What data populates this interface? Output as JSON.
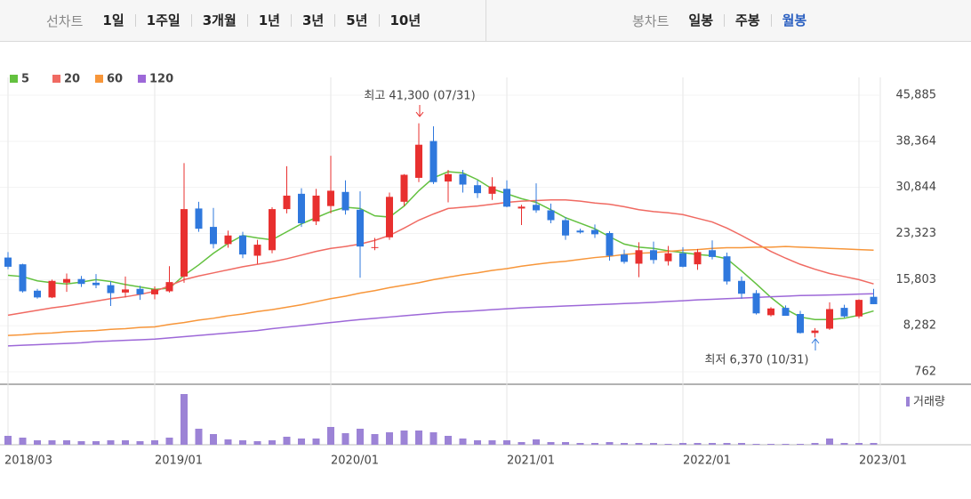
{
  "tabs": {
    "line_label": "선차트",
    "line_items": [
      "1일",
      "1주일",
      "3개월",
      "1년",
      "3년",
      "5년",
      "10년"
    ],
    "candle_label": "봉차트",
    "candle_items": [
      "일봉",
      "주봉",
      "월봉"
    ],
    "selected": "월봉"
  },
  "chart_data": {
    "type": "candlestick",
    "categories": [
      "2018/03",
      null,
      null,
      null,
      null,
      null,
      null,
      null,
      null,
      null,
      "2019/01",
      null,
      null,
      null,
      null,
      null,
      null,
      null,
      null,
      null,
      null,
      null,
      "2020/01",
      null,
      null,
      null,
      null,
      null,
      null,
      null,
      null,
      null,
      null,
      null,
      "2021/01",
      null,
      null,
      null,
      null,
      null,
      null,
      null,
      null,
      null,
      null,
      null,
      "2022/01",
      null,
      null,
      null,
      null,
      null,
      null,
      null,
      null,
      null,
      null,
      null,
      "2023/01",
      null
    ],
    "open": [
      19400,
      18300,
      14000,
      12900,
      15300,
      15900,
      15300,
      14900,
      13700,
      14300,
      13400,
      13900,
      16300,
      27400,
      24400,
      21600,
      23000,
      19700,
      20600,
      27300,
      29800,
      25300,
      27800,
      30100,
      27200,
      21100,
      22700,
      28500,
      32400,
      38400,
      31800,
      33000,
      31200,
      29800,
      30600,
      27400,
      28000,
      27100,
      25500,
      23800,
      23900,
      23400,
      19900,
      18400,
      20600,
      18800,
      20100,
      18300,
      20600,
      19600,
      15600,
      13600,
      10000,
      11200,
      10200,
      7100,
      7800,
      11200,
      9800,
      13000
    ],
    "high": [
      20300,
      18400,
      14300,
      15800,
      16800,
      16400,
      16700,
      15500,
      16300,
      14800,
      14700,
      18000,
      34800,
      28500,
      27500,
      23800,
      23600,
      22300,
      27600,
      34300,
      30700,
      30600,
      36000,
      32000,
      30200,
      22600,
      30000,
      33000,
      41300,
      40800,
      33700,
      33700,
      32000,
      32500,
      32000,
      28000,
      31500,
      28200,
      26000,
      24100,
      24800,
      23700,
      20700,
      21900,
      22000,
      21300,
      21100,
      20800,
      22200,
      20200,
      16300,
      14100,
      11300,
      11600,
      10700,
      7900,
      12100,
      11700,
      12600,
      14300
    ],
    "low": [
      17500,
      13700,
      12700,
      12800,
      13800,
      14600,
      14400,
      11500,
      12900,
      12500,
      12600,
      13700,
      15300,
      23600,
      20900,
      21000,
      19300,
      18400,
      20100,
      26600,
      24400,
      24700,
      26600,
      26400,
      16100,
      20600,
      22300,
      27800,
      31700,
      31400,
      28400,
      30000,
      29100,
      28800,
      27600,
      24700,
      26700,
      25000,
      22300,
      23300,
      22600,
      18900,
      18400,
      16200,
      18400,
      18100,
      17800,
      17400,
      19100,
      15000,
      12700,
      10100,
      9800,
      9900,
      7000,
      6370,
      7600,
      9600,
      9500,
      11800
    ],
    "close": [
      17900,
      13900,
      12900,
      15600,
      15900,
      15100,
      14900,
      13600,
      14200,
      13400,
      14200,
      15400,
      27300,
      24100,
      21600,
      23000,
      19900,
      21500,
      27300,
      29500,
      25000,
      29500,
      30300,
      27100,
      21200,
      21100,
      29300,
      32900,
      37800,
      31700,
      33000,
      31300,
      29900,
      31000,
      27700,
      27700,
      27100,
      25500,
      23000,
      23500,
      23200,
      19700,
      18700,
      20600,
      19000,
      20100,
      17900,
      20300,
      19500,
      15500,
      13500,
      10300,
      11100,
      9900,
      7100,
      7500,
      11000,
      9800,
      12500,
      11800
    ],
    "up_color": "#e8302f",
    "down_color": "#2f78dd",
    "ylim": [
      -970,
      47330
    ],
    "yticks": [
      {
        "value": 45885,
        "label": "45,885"
      },
      {
        "value": 38364,
        "label": "38,364"
      },
      {
        "value": 30844,
        "label": "30,844"
      },
      {
        "value": 23323,
        "label": "23,323"
      },
      {
        "value": 15803,
        "label": "15,803"
      },
      {
        "value": 8282,
        "label": "8,282"
      },
      762
    ],
    "series": [
      {
        "name": "5",
        "color": "#63c13f",
        "values": [
          16500,
          16300,
          15600,
          15300,
          15100,
          15400,
          15800,
          15500,
          15000,
          14600,
          14200,
          14400,
          16500,
          18200,
          20100,
          21700,
          23000,
          22600,
          22300,
          23600,
          24900,
          25900,
          26900,
          27600,
          27400,
          26200,
          26000,
          27800,
          30300,
          32400,
          33400,
          33200,
          32100,
          30600,
          29800,
          29000,
          28400,
          27200,
          25900,
          25000,
          24100,
          22800,
          21600,
          21100,
          20900,
          20500,
          20200,
          19900,
          19700,
          19200,
          17200,
          15100,
          12900,
          11000,
          9700,
          9300,
          9300,
          9500,
          10000,
          10700
        ]
      },
      {
        "name": "20",
        "color": "#f06a62",
        "values": [
          10000,
          10400,
          10800,
          11200,
          11500,
          11900,
          12300,
          12700,
          13000,
          13400,
          13900,
          14800,
          15800,
          16400,
          16900,
          17400,
          17900,
          18300,
          18700,
          19200,
          19800,
          20400,
          20900,
          21200,
          21600,
          22200,
          23000,
          24200,
          25500,
          26500,
          27400,
          27600,
          27800,
          28100,
          28400,
          28600,
          28700,
          28800,
          28800,
          28600,
          28300,
          28100,
          27700,
          27200,
          26900,
          26700,
          26400,
          25800,
          25200,
          24200,
          23000,
          21700,
          20400,
          19300,
          18300,
          17500,
          16800,
          16300,
          15800,
          15100
        ]
      },
      {
        "name": "60",
        "color": "#f7963a",
        "values": [
          6700,
          6800,
          7000,
          7100,
          7300,
          7400,
          7500,
          7700,
          7800,
          8000,
          8100,
          8500,
          8800,
          9200,
          9500,
          9900,
          10200,
          10600,
          10900,
          11300,
          11700,
          12200,
          12700,
          13100,
          13600,
          14000,
          14500,
          14900,
          15300,
          15800,
          16200,
          16600,
          16900,
          17300,
          17600,
          18000,
          18300,
          18600,
          18800,
          19100,
          19400,
          19600,
          19900,
          20100,
          20200,
          20400,
          20600,
          20700,
          20900,
          21000,
          21000,
          21100,
          21100,
          21200,
          21100,
          21000,
          20900,
          20800,
          20700,
          20600
        ]
      },
      {
        "name": "120",
        "color": "#9d68d8",
        "values": [
          5000,
          5100,
          5200,
          5300,
          5400,
          5500,
          5700,
          5800,
          5900,
          6000,
          6100,
          6300,
          6500,
          6700,
          6900,
          7100,
          7300,
          7500,
          7800,
          8050,
          8300,
          8550,
          8800,
          9050,
          9300,
          9500,
          9700,
          9900,
          10100,
          10300,
          10500,
          10600,
          10750,
          10900,
          11050,
          11200,
          11300,
          11400,
          11500,
          11600,
          11700,
          11800,
          11900,
          12000,
          12100,
          12250,
          12350,
          12500,
          12600,
          12700,
          12800,
          12900,
          13000,
          13100,
          13200,
          13250,
          13300,
          13350,
          13450,
          13500
        ]
      }
    ],
    "annotations": [
      "최고 41,300 (07/31)",
      "최저 6,370 (10/31)"
    ],
    "volume": {
      "name": "거래량",
      "color": "#9c83d6",
      "ylim": [
        0,
        60
      ],
      "values": [
        10,
        8,
        5,
        5,
        5,
        4,
        4,
        5,
        5,
        4,
        5,
        8,
        57,
        18,
        12,
        6,
        5,
        4,
        5,
        9,
        7,
        7,
        20,
        13,
        18,
        12,
        14,
        16,
        16,
        14,
        10,
        7,
        5,
        5,
        5,
        3,
        6,
        3,
        3,
        2,
        2,
        3,
        2,
        2,
        2,
        1,
        2,
        2,
        2,
        2,
        2,
        1,
        1,
        1,
        1,
        2,
        7,
        2,
        2,
        2
      ]
    }
  }
}
